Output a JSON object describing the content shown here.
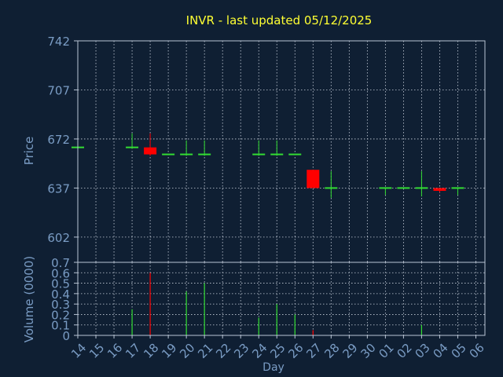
{
  "chart_data": {
    "type": "candlestick",
    "title": "INVR - last updated 05/12/2025",
    "xlabel": "Day",
    "grid": true,
    "categories": [
      "14",
      "15",
      "16",
      "17",
      "18",
      "19",
      "20",
      "21",
      "22",
      "23",
      "24",
      "25",
      "26",
      "27",
      "28",
      "29",
      "30",
      "01",
      "02",
      "03",
      "04",
      "05",
      "06"
    ],
    "price_panel": {
      "ylabel": "Price",
      "ylim": [
        584,
        742
      ],
      "yticks": [
        602,
        637,
        672,
        707,
        742
      ],
      "candles": [
        {
          "day": "14",
          "open": 666,
          "close": 666,
          "high": 666,
          "low": 666
        },
        {
          "day": "17",
          "open": 666,
          "close": 666,
          "high": 676,
          "low": 665
        },
        {
          "day": "18",
          "open": 666,
          "close": 661,
          "high": 676,
          "low": 660
        },
        {
          "day": "19",
          "open": 661,
          "close": 661,
          "high": 661,
          "low": 661
        },
        {
          "day": "20",
          "open": 661,
          "close": 661,
          "high": 671,
          "low": 660
        },
        {
          "day": "21",
          "open": 661,
          "close": 661,
          "high": 671,
          "low": 660
        },
        {
          "day": "24",
          "open": 661,
          "close": 661,
          "high": 671,
          "low": 660
        },
        {
          "day": "25",
          "open": 661,
          "close": 661,
          "high": 671,
          "low": 660
        },
        {
          "day": "26",
          "open": 661,
          "close": 661,
          "high": 661,
          "low": 661
        },
        {
          "day": "27",
          "open": 650,
          "close": 637,
          "high": 650,
          "low": 637
        },
        {
          "day": "28",
          "open": 637,
          "close": 637,
          "high": 649,
          "low": 630
        },
        {
          "day": "01",
          "open": 637,
          "close": 637,
          "high": 637,
          "low": 632
        },
        {
          "day": "02",
          "open": 637,
          "close": 637,
          "high": 637,
          "low": 637
        },
        {
          "day": "03",
          "open": 637,
          "close": 637,
          "high": 649,
          "low": 631
        },
        {
          "day": "04",
          "open": 637,
          "close": 635,
          "high": 637,
          "low": 634
        },
        {
          "day": "05",
          "open": 637,
          "close": 637,
          "high": 637,
          "low": 632
        }
      ]
    },
    "volume_panel": {
      "ylabel": "Volume (0000)",
      "ylim": [
        0,
        0.7
      ],
      "yticks": [
        "0",
        "0.1",
        "0.2",
        "0.3",
        "0.4",
        "0.5",
        "0.6",
        "0.7"
      ],
      "bars": [
        {
          "day": "17",
          "value": 0.25,
          "direction": "up"
        },
        {
          "day": "18",
          "value": 0.6,
          "direction": "down"
        },
        {
          "day": "20",
          "value": 0.42,
          "direction": "up"
        },
        {
          "day": "21",
          "value": 0.5,
          "direction": "up"
        },
        {
          "day": "24",
          "value": 0.17,
          "direction": "up"
        },
        {
          "day": "25",
          "value": 0.3,
          "direction": "up"
        },
        {
          "day": "26",
          "value": 0.2,
          "direction": "up"
        },
        {
          "day": "27",
          "value": 0.05,
          "direction": "down"
        },
        {
          "day": "03",
          "value": 0.1,
          "direction": "up"
        }
      ]
    },
    "colors": {
      "background": "#0f1f33",
      "title": "#ffff33",
      "axis_text": "#7a9cc4",
      "frame": "#b8c4d4",
      "grid": "#c8d0dc",
      "up": "#33dd33",
      "down": "#ff0000"
    }
  }
}
